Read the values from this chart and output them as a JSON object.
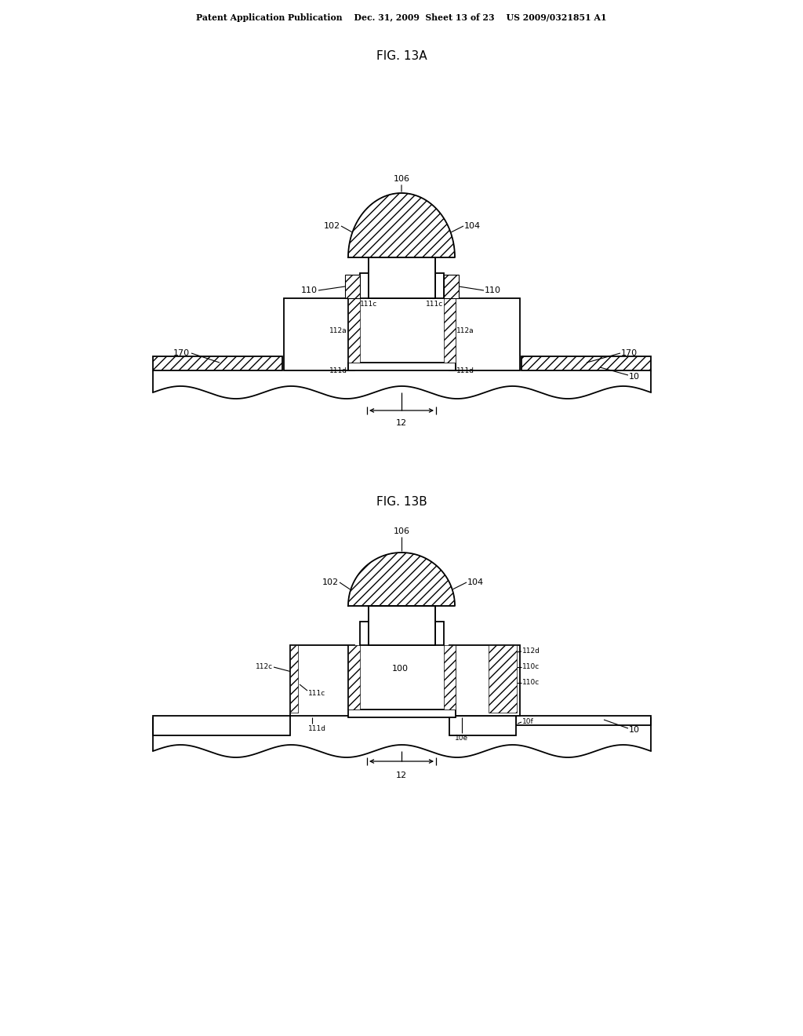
{
  "bg_color": "#ffffff",
  "line_color": "#000000",
  "header_text": "Patent Application Publication    Dec. 31, 2009  Sheet 13 of 23    US 2009/0321851 A1",
  "fig_title_A": "FIG. 13A",
  "fig_title_B": "FIG. 13B",
  "figsize": [
    10.24,
    13.2
  ],
  "dpi": 100
}
